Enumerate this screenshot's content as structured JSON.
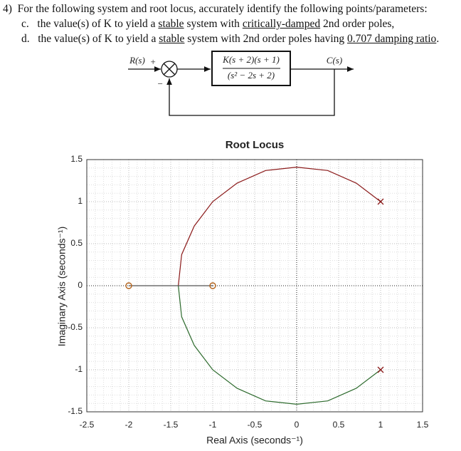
{
  "question": {
    "number": "4)",
    "text": "For the following system and root locus, accurately identify the following points/parameters:",
    "items": [
      {
        "letter": "c.",
        "parts": [
          "the value(s) of K to yield a ",
          "stable",
          " system with ",
          "critically-damped",
          " 2nd order poles,"
        ]
      },
      {
        "letter": "d.",
        "parts": [
          "the value(s) of K to yield a ",
          "stable",
          " system with 2nd order poles having ",
          "0.707 damping ratio",
          "."
        ]
      }
    ]
  },
  "diagram": {
    "input": "R(s)",
    "plus": "+",
    "minus": "−",
    "numerator": "K(s + 2)(s + 1)",
    "denominator": "(s² − 2s + 2)",
    "output": "C(s)"
  },
  "chart_data": {
    "type": "line",
    "title": "Root Locus",
    "x_label": "Real Axis (seconds⁻¹)",
    "y_label": "Imaginary Axis (seconds⁻¹)",
    "xlim": [
      -2.5,
      1.5
    ],
    "xticks": [
      -2.5,
      -2,
      -1.5,
      -1,
      -0.5,
      0,
      0.5,
      1,
      1.5
    ],
    "ylim": [
      -1.5,
      1.5
    ],
    "yticks": [
      -1.5,
      -1,
      -0.5,
      0,
      0.5,
      1,
      1.5
    ],
    "grid": true,
    "series": [
      {
        "color": "#8b1a1a",
        "marker": "none",
        "x": [
          1,
          0.71,
          0.37,
          0,
          -0.37,
          -0.71,
          -1,
          -1.22,
          -1.37,
          -1.41
        ],
        "values": [
          1,
          1.22,
          1.37,
          1.41,
          1.37,
          1.22,
          1,
          0.71,
          0.37,
          0
        ]
      },
      {
        "color": "#2e6b2e",
        "marker": "none",
        "x": [
          1,
          0.71,
          0.37,
          0,
          -0.37,
          -0.71,
          -1,
          -1.22,
          -1.37,
          -1.41
        ],
        "values": [
          -1,
          -1.22,
          -1.37,
          -1.41,
          -1.37,
          -1.22,
          -1,
          -0.71,
          -0.37,
          0
        ]
      },
      {
        "color": "#555555",
        "marker": "none",
        "x": [
          -2,
          -1
        ],
        "values": [
          0,
          0
        ]
      },
      {
        "color": "#8b1a1a",
        "marker": "x",
        "x": [
          1,
          1
        ],
        "values": [
          1,
          -1
        ]
      },
      {
        "color": "#b5651d",
        "marker": "o",
        "x": [
          -2,
          -1
        ],
        "values": [
          0,
          0
        ]
      }
    ]
  }
}
